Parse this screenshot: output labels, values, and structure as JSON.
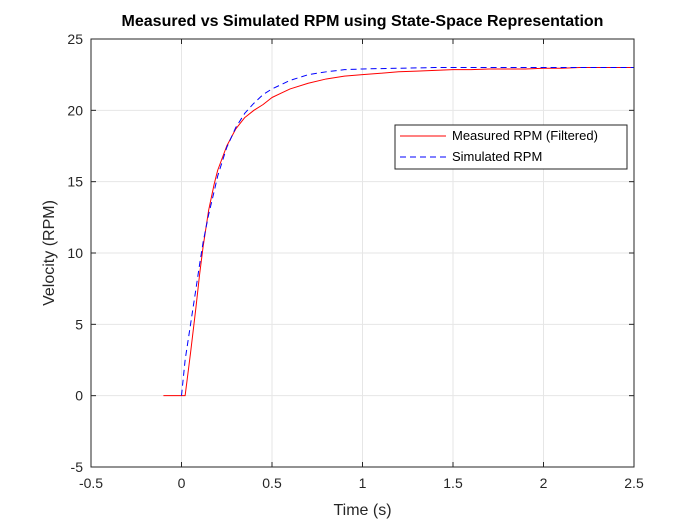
{
  "chart_data": {
    "type": "line",
    "title": "Measured vs Simulated RPM using State-Space Representation",
    "xlabel": "Time (s)",
    "ylabel": "Velocity (RPM)",
    "xlim": [
      -0.5,
      2.5
    ],
    "ylim": [
      -5,
      25
    ],
    "xticks": [
      -0.5,
      0,
      0.5,
      1,
      1.5,
      2,
      2.5
    ],
    "xtick_labels": [
      "-0.5",
      "0",
      "0.5",
      "1",
      "1.5",
      "2",
      "2.5"
    ],
    "yticks": [
      -5,
      0,
      5,
      10,
      15,
      20,
      25
    ],
    "ytick_labels": [
      "-5",
      "0",
      "5",
      "10",
      "15",
      "20",
      "25"
    ],
    "grid": true,
    "legend_position": "top-right",
    "series": [
      {
        "name": "Measured RPM (Filtered)",
        "color": "#ff0000",
        "style": "solid",
        "x": [
          -0.1,
          0.0,
          0.02,
          0.05,
          0.08,
          0.1,
          0.12,
          0.15,
          0.18,
          0.2,
          0.25,
          0.3,
          0.35,
          0.4,
          0.45,
          0.5,
          0.55,
          0.6,
          0.7,
          0.8,
          0.9,
          1.0,
          1.1,
          1.2,
          1.3,
          1.4,
          1.5,
          1.6,
          1.7,
          1.8,
          1.9,
          2.0,
          2.1,
          2.2,
          2.3,
          2.4,
          2.5
        ],
        "y": [
          0.0,
          0.0,
          0.0,
          3.0,
          6.2,
          8.5,
          10.5,
          13.0,
          14.8,
          15.8,
          17.5,
          18.7,
          19.5,
          20.0,
          20.4,
          20.9,
          21.2,
          21.5,
          21.9,
          22.2,
          22.4,
          22.5,
          22.6,
          22.7,
          22.75,
          22.8,
          22.85,
          22.85,
          22.9,
          22.9,
          22.9,
          22.95,
          22.95,
          23.0,
          23.0,
          23.0,
          23.0
        ]
      },
      {
        "name": "Simulated RPM",
        "color": "#0000ff",
        "style": "dashed",
        "x": [
          0.0,
          0.02,
          0.05,
          0.08,
          0.1,
          0.12,
          0.15,
          0.18,
          0.2,
          0.25,
          0.3,
          0.35,
          0.4,
          0.45,
          0.5,
          0.55,
          0.6,
          0.7,
          0.8,
          0.9,
          1.0,
          1.2,
          1.4,
          1.6,
          1.8,
          2.0,
          2.2,
          2.5
        ],
        "y": [
          0.0,
          2.5,
          5.0,
          7.5,
          9.2,
          10.8,
          12.7,
          14.3,
          15.4,
          17.4,
          18.8,
          19.8,
          20.5,
          21.1,
          21.5,
          21.8,
          22.1,
          22.5,
          22.7,
          22.85,
          22.9,
          22.95,
          23.0,
          23.0,
          23.0,
          23.0,
          23.0,
          23.0
        ]
      }
    ]
  }
}
